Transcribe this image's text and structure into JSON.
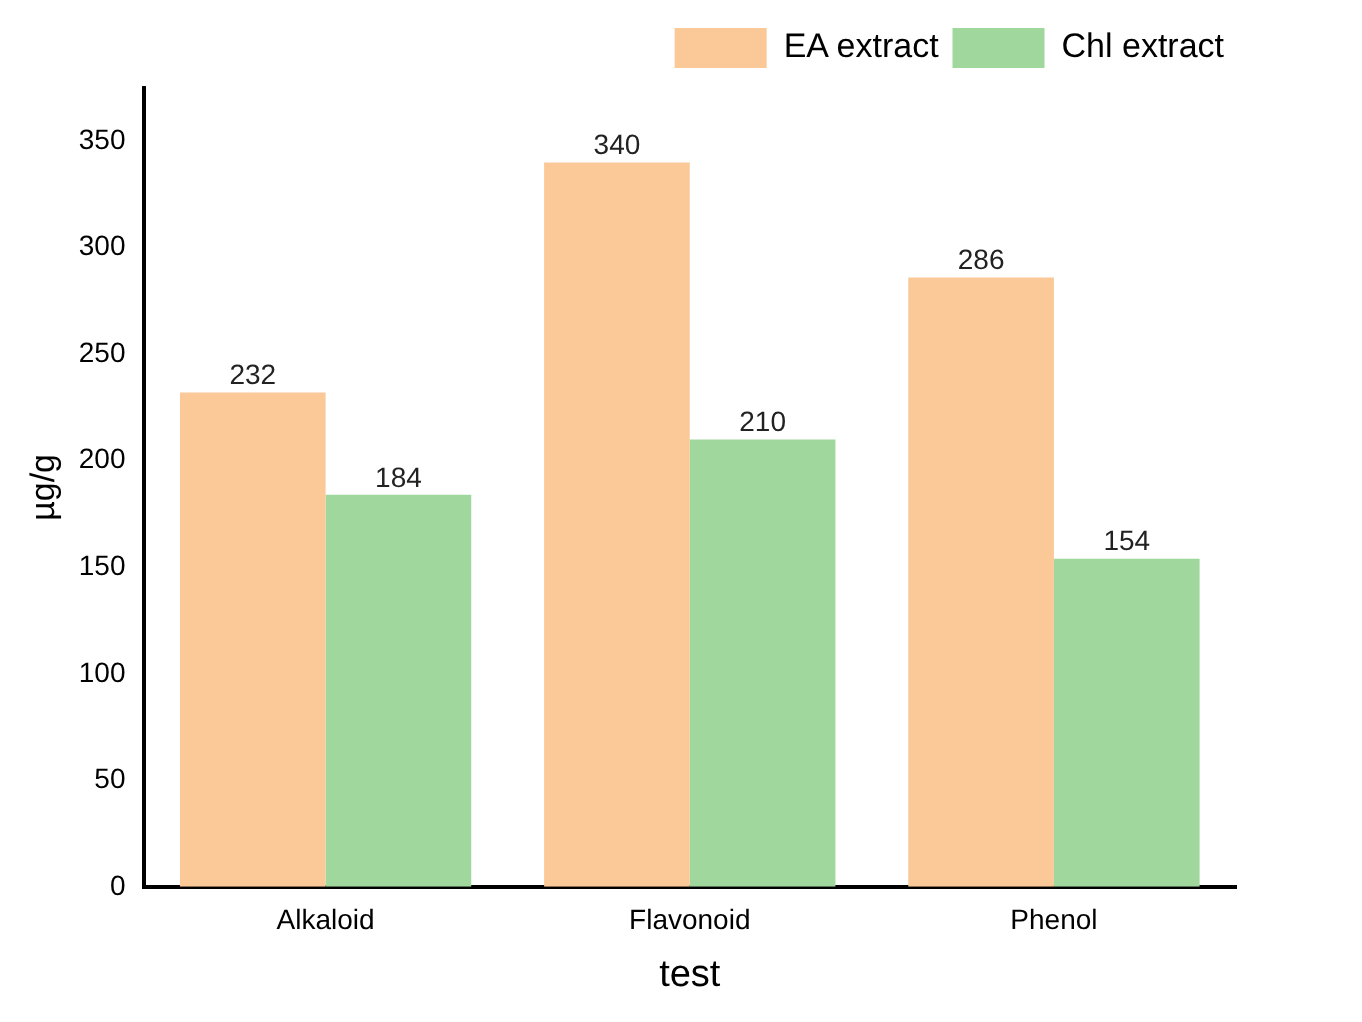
{
  "chart_data": {
    "type": "bar",
    "xlabel": "test",
    "ylabel": "µg/g",
    "categories": [
      "Alkaloid",
      "Flavonoid",
      "Phenol"
    ],
    "series": [
      {
        "name": "EA extract",
        "color": "#fbc898",
        "values": [
          232,
          340,
          286
        ]
      },
      {
        "name": "Chl extract",
        "color": "#9fd79c",
        "values": [
          184,
          210,
          154
        ]
      }
    ],
    "ylim": [
      0,
      375
    ],
    "yticks": [
      0,
      50,
      100,
      150,
      200,
      250,
      300,
      350
    ],
    "grid": false,
    "legend": "top right",
    "data_labels": true
  }
}
